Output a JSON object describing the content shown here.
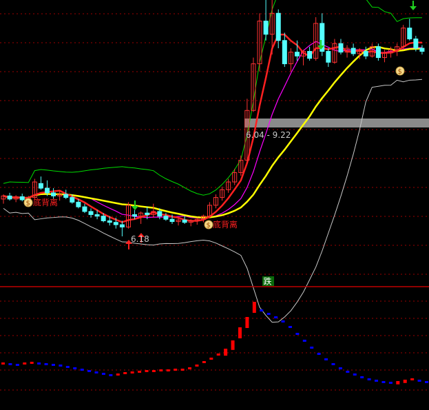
{
  "chart_data": [
    {
      "type": "candlestick",
      "panel": "price",
      "grid": "dotted horizontal",
      "ylim": [
        5.6,
        9.25
      ],
      "annotations": {
        "low_label": "6.18",
        "range_label": "6.04 - 9.22",
        "divergence_label": "底背离"
      },
      "candles": [
        [
          6.66,
          6.72,
          6.6,
          6.7
        ],
        [
          6.7,
          6.74,
          6.64,
          6.66
        ],
        [
          6.66,
          6.71,
          6.62,
          6.69
        ],
        [
          6.69,
          6.73,
          6.63,
          6.65
        ],
        [
          6.65,
          6.7,
          6.6,
          6.68
        ],
        [
          6.68,
          6.92,
          6.66,
          6.88
        ],
        [
          6.86,
          6.95,
          6.78,
          6.8
        ],
        [
          6.8,
          6.9,
          6.7,
          6.74
        ],
        [
          6.74,
          6.8,
          6.66,
          6.7
        ],
        [
          6.7,
          6.76,
          6.64,
          6.72
        ],
        [
          6.72,
          6.78,
          6.66,
          6.68
        ],
        [
          6.68,
          6.72,
          6.6,
          6.62
        ],
        [
          6.62,
          6.66,
          6.54,
          6.56
        ],
        [
          6.56,
          6.6,
          6.48,
          6.5
        ],
        [
          6.5,
          6.54,
          6.42,
          6.46
        ],
        [
          6.46,
          6.52,
          6.4,
          6.44
        ],
        [
          6.44,
          6.48,
          6.36,
          6.38
        ],
        [
          6.38,
          6.44,
          6.32,
          6.36
        ],
        [
          6.36,
          6.42,
          6.28,
          6.33
        ],
        [
          6.33,
          6.38,
          6.18,
          6.3
        ],
        [
          6.3,
          6.62,
          6.28,
          6.58
        ],
        [
          6.46,
          6.52,
          6.4,
          6.44
        ],
        [
          6.44,
          6.5,
          6.34,
          6.48
        ],
        [
          6.48,
          6.56,
          6.4,
          6.46
        ],
        [
          6.46,
          6.6,
          6.42,
          6.5
        ],
        [
          6.5,
          6.54,
          6.4,
          6.44
        ],
        [
          6.44,
          6.48,
          6.38,
          6.4
        ],
        [
          6.4,
          6.46,
          6.34,
          6.37
        ],
        [
          6.37,
          6.42,
          6.32,
          6.39
        ],
        [
          6.39,
          6.44,
          6.34,
          6.36
        ],
        [
          6.36,
          6.4,
          6.31,
          6.38
        ],
        [
          6.38,
          6.42,
          6.33,
          6.4
        ],
        [
          6.4,
          6.46,
          6.36,
          6.44
        ],
        [
          6.44,
          6.62,
          6.42,
          6.58
        ],
        [
          6.58,
          6.72,
          6.54,
          6.68
        ],
        [
          6.68,
          6.82,
          6.64,
          6.78
        ],
        [
          6.78,
          6.92,
          6.74,
          6.88
        ],
        [
          6.88,
          7.05,
          6.84,
          7.0
        ],
        [
          7.0,
          7.22,
          6.96,
          7.16
        ],
        [
          7.16,
          7.95,
          7.12,
          7.8
        ],
        [
          7.8,
          8.48,
          7.78,
          8.4
        ],
        [
          8.4,
          9.05,
          8.3,
          8.95
        ],
        [
          8.95,
          9.3,
          8.7,
          8.78
        ],
        [
          8.78,
          9.25,
          8.52,
          9.05
        ],
        [
          9.05,
          9.1,
          8.6,
          8.7
        ],
        [
          8.7,
          8.8,
          8.36,
          8.4
        ],
        [
          8.4,
          8.6,
          8.3,
          8.55
        ],
        [
          8.55,
          8.7,
          8.44,
          8.5
        ],
        [
          8.5,
          8.58,
          8.38,
          8.56
        ],
        [
          8.56,
          8.62,
          8.44,
          8.47
        ],
        [
          8.47,
          9.0,
          8.44,
          8.92
        ],
        [
          8.92,
          9.05,
          8.5,
          8.56
        ],
        [
          8.56,
          8.6,
          8.36,
          8.42
        ],
        [
          8.42,
          8.72,
          8.4,
          8.66
        ],
        [
          8.66,
          8.72,
          8.52,
          8.55
        ],
        [
          8.55,
          8.64,
          8.48,
          8.6
        ],
        [
          8.6,
          8.66,
          8.5,
          8.53
        ],
        [
          8.53,
          8.6,
          8.46,
          8.56
        ],
        [
          8.56,
          8.62,
          8.46,
          8.5
        ],
        [
          8.5,
          8.66,
          8.48,
          8.62
        ],
        [
          8.62,
          8.66,
          8.44,
          8.48
        ],
        [
          8.48,
          8.58,
          8.42,
          8.54
        ],
        [
          8.54,
          8.62,
          8.48,
          8.58
        ],
        [
          8.58,
          8.66,
          8.5,
          8.62
        ],
        [
          8.62,
          8.9,
          8.58,
          8.86
        ],
        [
          8.86,
          8.98,
          8.7,
          8.72
        ],
        [
          8.72,
          8.76,
          8.56,
          8.6
        ],
        [
          8.6,
          8.64,
          8.52,
          8.56
        ]
      ]
    },
    {
      "type": "scatter",
      "panel": "indicator",
      "signal_label": "跌",
      "values": [
        3,
        2,
        1,
        3,
        4,
        3,
        2,
        1,
        0,
        -2,
        -4,
        -6,
        -8,
        -10,
        -12,
        -14,
        -13,
        -11,
        -10,
        -9,
        -8,
        -8,
        -7,
        -7,
        -6,
        -6,
        -4,
        0,
        5,
        10,
        16,
        24,
        36,
        55,
        70,
        92,
        80,
        75,
        70,
        64,
        56,
        46,
        36,
        26,
        17,
        9,
        2,
        -4,
        -9,
        -13,
        -17,
        -20,
        -22,
        -24,
        -25,
        -23,
        -21,
        -20,
        -22,
        -24
      ],
      "colors": {
        "up": "#ff0000",
        "down": "#0000ff"
      }
    }
  ],
  "colors": {
    "up": "#ff3232",
    "down": "#54ffff",
    "ma5": "#ff2020",
    "ma10": "#ff00ff",
    "ma20": "#ffff00",
    "band_upper": "#00dd00",
    "band_lower": "#c8c8c8",
    "grid": "#a00000"
  }
}
